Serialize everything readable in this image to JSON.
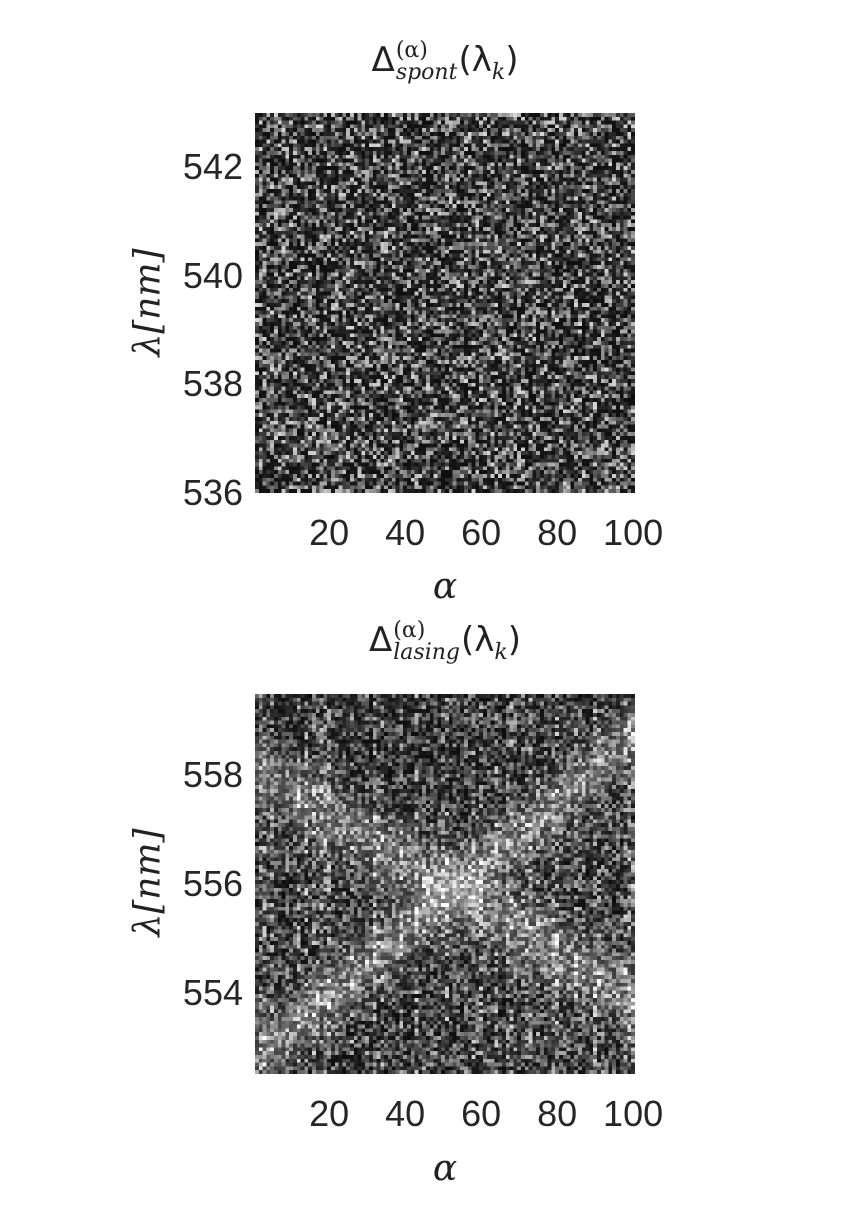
{
  "chart_data": [
    {
      "type": "heatmap",
      "title": {
        "symbol": "Δ",
        "superscript": "(α)",
        "subscript": "spont",
        "argument": "(λ",
        "argument_subscript": "k",
        "close": ")"
      },
      "xlabel": "α",
      "ylabel": "λ[nm]",
      "xlim": [
        1,
        100
      ],
      "ylim": [
        543,
        536
      ],
      "xticks": [
        "20",
        "40",
        "60",
        "80",
        "100"
      ],
      "yticks": [
        "536",
        "538",
        "540",
        "542"
      ],
      "colormap": "gray",
      "pattern": "uniform random speckle noise, dark background, no visible structure",
      "grid": false,
      "legend": "none"
    },
    {
      "type": "heatmap",
      "title": {
        "symbol": "Δ",
        "superscript": "(α)",
        "subscript": "lasing",
        "argument": "(λ",
        "argument_subscript": "k",
        "close": ")"
      },
      "xlabel": "α",
      "ylabel": "λ[nm]",
      "xlim": [
        1,
        100
      ],
      "ylim": [
        559.5,
        552.5
      ],
      "xticks": [
        "20",
        "40",
        "60",
        "80",
        "100"
      ],
      "yticks": [
        "554",
        "556",
        "558"
      ],
      "colormap": "gray",
      "pattern": "vertically streaked noise with brighter diagonal features crossing near the center",
      "grid": false,
      "legend": "none"
    }
  ]
}
